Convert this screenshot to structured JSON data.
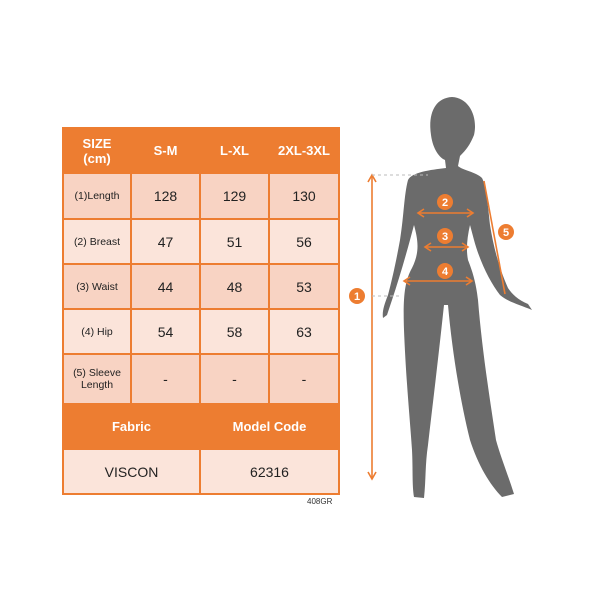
{
  "table": {
    "header": {
      "size_label": "SIZE",
      "unit_label": "(cm)",
      "sizes": [
        "S-M",
        "L-XL",
        "2XL-3XL"
      ]
    },
    "rows": [
      {
        "label": "(1)Length",
        "values": [
          "128",
          "129",
          "130"
        ]
      },
      {
        "label": "(2) Breast",
        "values": [
          "47",
          "51",
          "56"
        ]
      },
      {
        "label": "(3) Waist",
        "values": [
          "44",
          "48",
          "53"
        ]
      },
      {
        "label": "(4) Hip",
        "values": [
          "54",
          "58",
          "63"
        ]
      },
      {
        "label": "(5) Sleeve Length",
        "values": [
          "-",
          "-",
          "-"
        ]
      }
    ],
    "fabric_label": "Fabric",
    "model_code_label": "Model Code",
    "fabric_value": "VISCON",
    "model_code_value": "62316"
  },
  "product_code": "408GR",
  "figure": {
    "markers": [
      "1",
      "2",
      "3",
      "4",
      "5"
    ]
  },
  "colors": {
    "accent": "#ED7D31",
    "cell_dark": "#F8D3C3",
    "cell_light": "#FBE4DA",
    "silhouette": "#6B6B6B"
  }
}
